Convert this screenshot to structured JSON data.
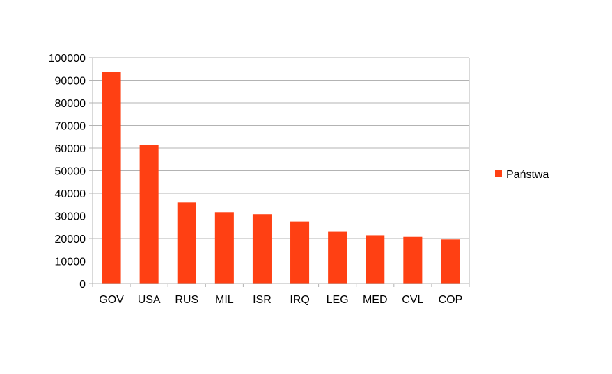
{
  "chart_data": {
    "type": "bar",
    "title": "",
    "xlabel": "",
    "ylabel": "",
    "categories": [
      "GOV",
      "USA",
      "RUS",
      "MIL",
      "ISR",
      "IRQ",
      "LEG",
      "MED",
      "CVL",
      "COP"
    ],
    "series": [
      {
        "name": "Państwa",
        "color": "#ff4013",
        "values": [
          93700,
          61500,
          35900,
          31600,
          30700,
          27500,
          22900,
          21400,
          20700,
          19600
        ]
      }
    ],
    "ylim": [
      0,
      100000
    ],
    "yticks": [
      "0",
      "10000",
      "20000",
      "30000",
      "40000",
      "50000",
      "60000",
      "70000",
      "80000",
      "90000",
      "100000"
    ],
    "grid": true,
    "legend_position": "right"
  }
}
